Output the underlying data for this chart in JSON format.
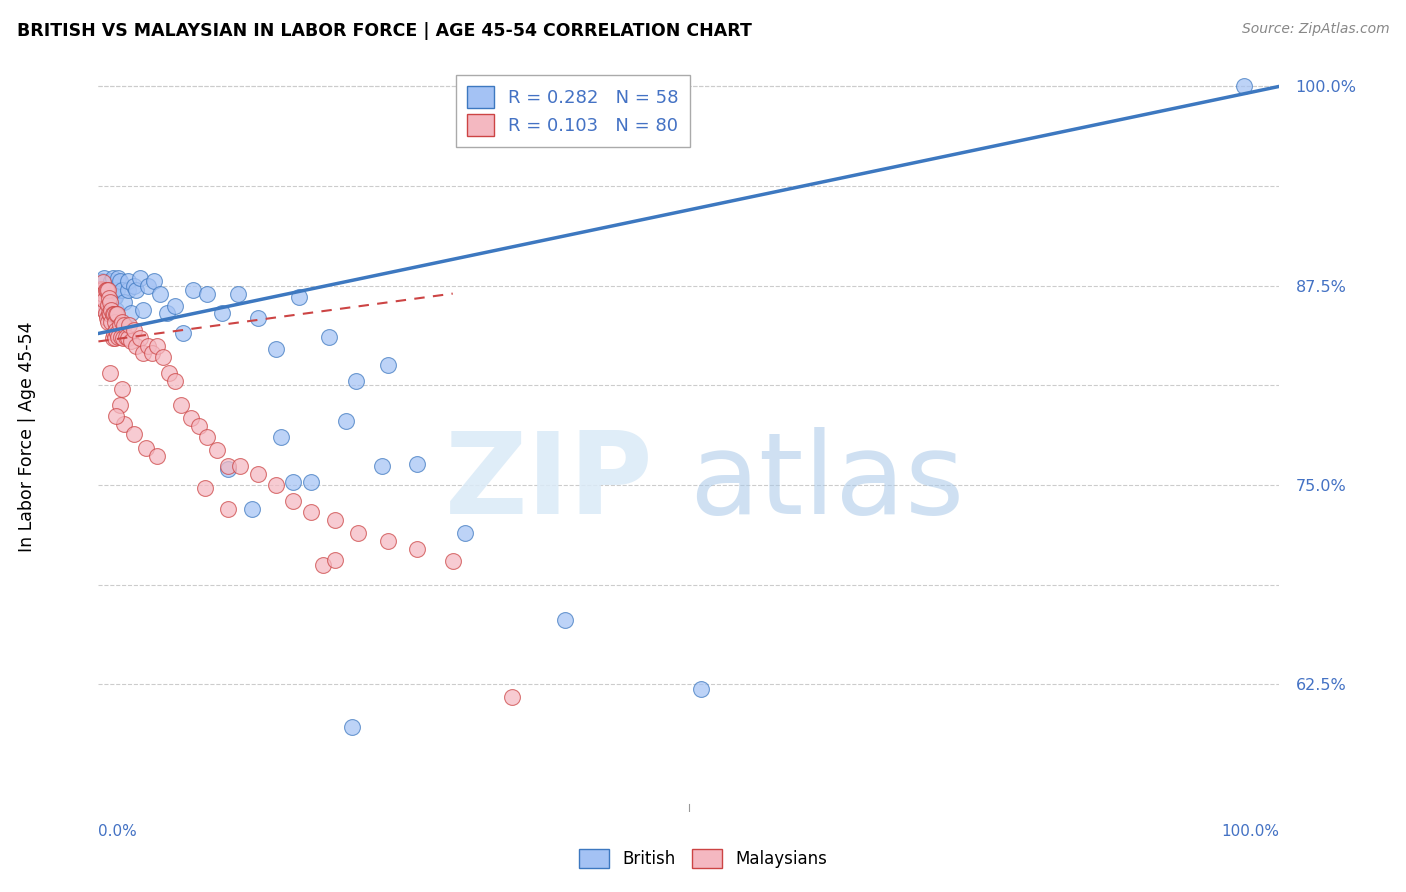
{
  "title": "BRITISH VS MALAYSIAN IN LABOR FORCE | AGE 45-54 CORRELATION CHART",
  "source": "Source: ZipAtlas.com",
  "ylabel": "In Labor Force | Age 45-54",
  "xmin": 0.0,
  "xmax": 1.0,
  "ymin": 0.545,
  "ymax": 1.015,
  "british_R": 0.282,
  "british_N": 58,
  "malaysian_R": 0.103,
  "malaysian_N": 80,
  "british_color": "#a4c2f4",
  "british_edge": "#3d78c0",
  "malaysian_color": "#f4b8c1",
  "malaysian_edge": "#cc4444",
  "british_line_color": "#3d78c0",
  "malaysian_line_color": "#cc4444",
  "legend_label_british": "British",
  "legend_label_malaysian": "Malaysians",
  "ytick_positions": [
    0.625,
    0.6875,
    0.75,
    0.8125,
    0.875,
    0.9375,
    1.0
  ],
  "british_x": [
    0.002,
    0.003,
    0.004,
    0.004,
    0.005,
    0.005,
    0.006,
    0.007,
    0.008,
    0.008,
    0.009,
    0.01,
    0.011,
    0.012,
    0.013,
    0.014,
    0.015,
    0.016,
    0.017,
    0.018,
    0.02,
    0.022,
    0.025,
    0.025,
    0.028,
    0.03,
    0.032,
    0.035,
    0.038,
    0.042,
    0.047,
    0.052,
    0.058,
    0.065,
    0.072,
    0.08,
    0.092,
    0.105,
    0.118,
    0.135,
    0.15,
    0.17,
    0.195,
    0.218,
    0.245,
    0.27,
    0.155,
    0.18,
    0.21,
    0.24,
    0.11,
    0.13,
    0.165,
    0.31,
    0.395,
    0.51,
    0.215,
    0.97
  ],
  "british_y": [
    0.873,
    0.878,
    0.862,
    0.87,
    0.873,
    0.88,
    0.873,
    0.868,
    0.865,
    0.872,
    0.873,
    0.86,
    0.878,
    0.88,
    0.868,
    0.868,
    0.86,
    0.872,
    0.88,
    0.878,
    0.872,
    0.865,
    0.872,
    0.878,
    0.858,
    0.875,
    0.872,
    0.88,
    0.86,
    0.875,
    0.878,
    0.87,
    0.858,
    0.862,
    0.845,
    0.872,
    0.87,
    0.858,
    0.87,
    0.855,
    0.835,
    0.868,
    0.843,
    0.815,
    0.825,
    0.763,
    0.78,
    0.752,
    0.79,
    0.762,
    0.76,
    0.735,
    0.752,
    0.72,
    0.665,
    0.622,
    0.598,
    1.0
  ],
  "malaysian_x": [
    0.002,
    0.002,
    0.003,
    0.003,
    0.004,
    0.004,
    0.005,
    0.005,
    0.006,
    0.006,
    0.007,
    0.007,
    0.008,
    0.008,
    0.008,
    0.009,
    0.009,
    0.01,
    0.01,
    0.011,
    0.011,
    0.012,
    0.012,
    0.013,
    0.013,
    0.014,
    0.014,
    0.015,
    0.015,
    0.016,
    0.016,
    0.017,
    0.018,
    0.019,
    0.02,
    0.021,
    0.022,
    0.023,
    0.025,
    0.026,
    0.028,
    0.03,
    0.032,
    0.035,
    0.038,
    0.042,
    0.045,
    0.05,
    0.055,
    0.06,
    0.065,
    0.07,
    0.078,
    0.085,
    0.092,
    0.1,
    0.11,
    0.12,
    0.135,
    0.15,
    0.165,
    0.18,
    0.2,
    0.22,
    0.245,
    0.27,
    0.3,
    0.01,
    0.018,
    0.022,
    0.03,
    0.04,
    0.05,
    0.09,
    0.19,
    0.11,
    0.35,
    0.015,
    0.02,
    0.2
  ],
  "malaysian_y": [
    0.873,
    0.868,
    0.872,
    0.863,
    0.87,
    0.877,
    0.86,
    0.866,
    0.872,
    0.858,
    0.872,
    0.855,
    0.852,
    0.863,
    0.872,
    0.858,
    0.867,
    0.857,
    0.865,
    0.852,
    0.86,
    0.842,
    0.857,
    0.845,
    0.857,
    0.842,
    0.852,
    0.847,
    0.857,
    0.845,
    0.857,
    0.843,
    0.85,
    0.843,
    0.852,
    0.842,
    0.85,
    0.843,
    0.842,
    0.85,
    0.84,
    0.847,
    0.837,
    0.842,
    0.833,
    0.837,
    0.833,
    0.837,
    0.83,
    0.82,
    0.815,
    0.8,
    0.792,
    0.787,
    0.78,
    0.772,
    0.762,
    0.762,
    0.757,
    0.75,
    0.74,
    0.733,
    0.728,
    0.72,
    0.715,
    0.71,
    0.702,
    0.82,
    0.8,
    0.788,
    0.782,
    0.773,
    0.768,
    0.748,
    0.7,
    0.735,
    0.617,
    0.793,
    0.81,
    0.703
  ]
}
